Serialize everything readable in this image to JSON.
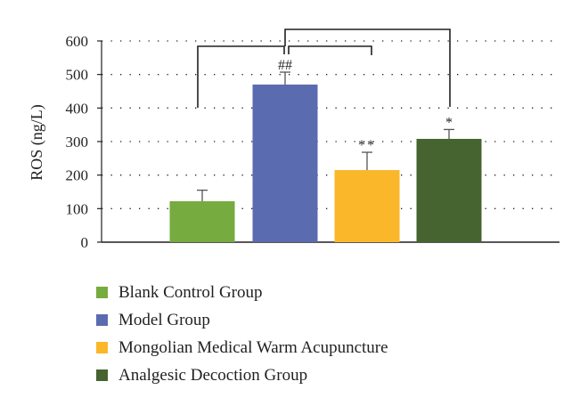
{
  "chart_data": {
    "type": "bar",
    "ylabel": "ROS (ng/L)",
    "ylim": [
      0,
      600
    ],
    "yticks": [
      0,
      100,
      200,
      300,
      400,
      500,
      600
    ],
    "grid": true,
    "legend_position": "bottom",
    "categories": [
      "Blank Control Group",
      "Model Group",
      "Mongolian Medical Warm Acupuncture",
      "Analgesic Decoction Group"
    ],
    "values": [
      122,
      470,
      215,
      308
    ],
    "errors": [
      33,
      37,
      53,
      28
    ],
    "significance": [
      "",
      "##",
      "**",
      "*"
    ],
    "colors": [
      "#76ab3f",
      "#5b6bb0",
      "#fbb72a",
      "#46642f"
    ]
  }
}
